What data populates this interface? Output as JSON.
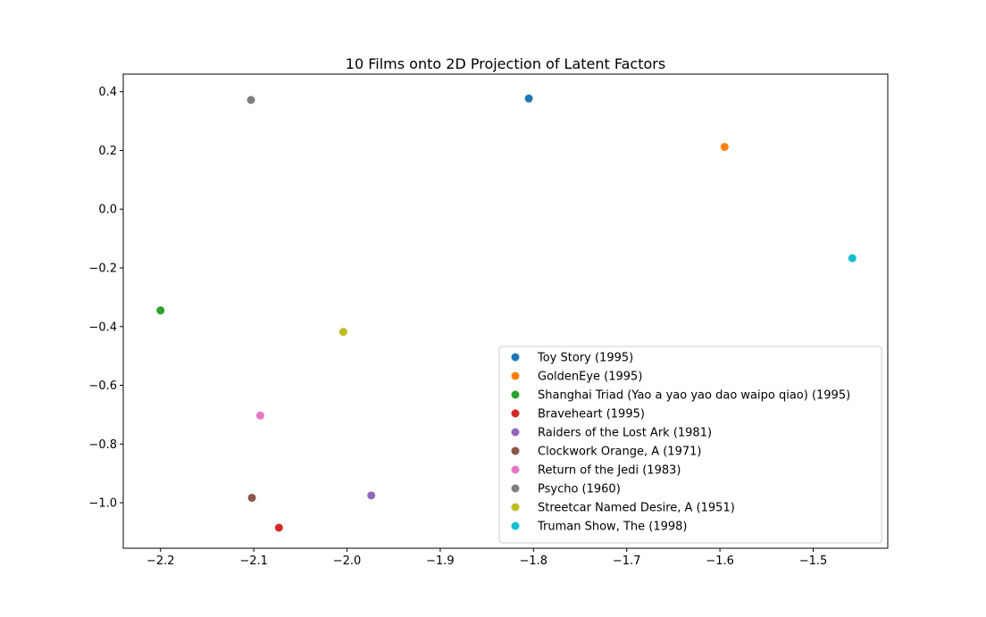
{
  "chart_data": {
    "type": "scatter",
    "title": "10 Films onto 2D Projection of Latent Factors",
    "xlabel": "",
    "ylabel": "",
    "xlim": [
      -2.24,
      -1.42
    ],
    "ylim": [
      -1.155,
      0.46
    ],
    "xticks": [
      -2.2,
      -2.1,
      -2.0,
      -1.9,
      -1.8,
      -1.7,
      -1.6,
      -1.5
    ],
    "xtick_labels": [
      "−2.2",
      "−2.1",
      "−2.0",
      "−1.9",
      "−1.8",
      "−1.7",
      "−1.6",
      "−1.5"
    ],
    "yticks": [
      0.4,
      0.2,
      0.0,
      -0.2,
      -0.4,
      -0.6,
      -0.8,
      -1.0
    ],
    "ytick_labels": [
      "0.4",
      "0.2",
      "0.0",
      "−0.2",
      "−0.4",
      "−0.6",
      "−0.8",
      "−1.0"
    ],
    "grid": false,
    "legend_position": "lower-right",
    "series": [
      {
        "name": "Toy Story (1995)",
        "x": -1.805,
        "y": 0.377,
        "color": "#1f77b4"
      },
      {
        "name": "GoldenEye (1995)",
        "x": -1.595,
        "y": 0.212,
        "color": "#ff7f0e"
      },
      {
        "name": "Shanghai Triad (Yao a yao yao dao waipo qiao) (1995)",
        "x": -2.2,
        "y": -0.345,
        "color": "#2ca02c"
      },
      {
        "name": "Braveheart (1995)",
        "x": -2.073,
        "y": -1.085,
        "color": "#d62728"
      },
      {
        "name": "Raiders of the Lost Ark (1981)",
        "x": -1.974,
        "y": -0.975,
        "color": "#9467bd"
      },
      {
        "name": "Clockwork Orange, A (1971)",
        "x": -2.102,
        "y": -0.983,
        "color": "#8c564b"
      },
      {
        "name": "Return of the Jedi (1983)",
        "x": -2.093,
        "y": -0.703,
        "color": "#e377c2"
      },
      {
        "name": "Psycho (1960)",
        "x": -2.103,
        "y": 0.372,
        "color": "#7f7f7f"
      },
      {
        "name": "Streetcar Named Desire, A (1951)",
        "x": -2.004,
        "y": -0.418,
        "color": "#bcbd22"
      },
      {
        "name": "Truman Show, The (1998)",
        "x": -1.458,
        "y": -0.167,
        "color": "#17becf"
      }
    ]
  }
}
